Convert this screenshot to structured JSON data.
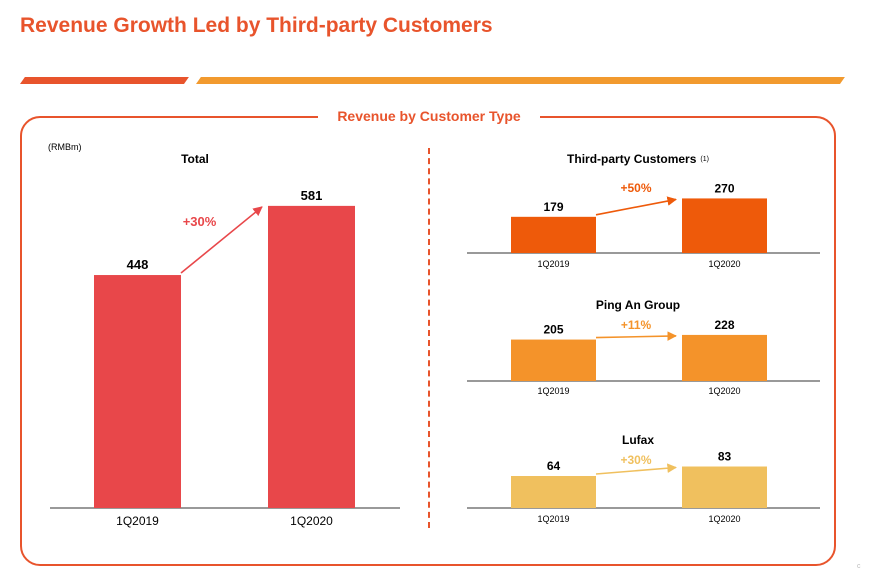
{
  "page": {
    "title": "Revenue Growth Led by Third-party Customers",
    "panel_title": "Revenue by Customer Type",
    "unit": "(RMBm)",
    "corner_mark": "c"
  },
  "colors": {
    "title": "#e8542c",
    "bar_left": "#e8542c",
    "bar_right": "#f29a2e",
    "panel_border": "#e8542c"
  },
  "chart_data": [
    {
      "type": "bar",
      "title": "Total",
      "categories": [
        "1Q2019",
        "1Q2020"
      ],
      "values": [
        448,
        581
      ],
      "growth_label": "+30%",
      "ylim": [
        0,
        750
      ],
      "color": "#e8474a",
      "arrow_color": "#e8474a"
    },
    {
      "type": "bar",
      "title": "Third-party Customers",
      "title_note": "(1)",
      "categories": [
        "1Q2019",
        "1Q2020"
      ],
      "values": [
        179,
        270
      ],
      "growth_label": "+50%",
      "ylim": [
        0,
        470
      ],
      "color": "#ee5a0a",
      "arrow_color": "#ee5a0a"
    },
    {
      "type": "bar",
      "title": "Ping An Group",
      "categories": [
        "1Q2019",
        "1Q2020"
      ],
      "values": [
        205,
        228
      ],
      "growth_label": "+11%",
      "ylim": [
        0,
        470
      ],
      "color": "#f4932a",
      "arrow_color": "#f4932a"
    },
    {
      "type": "bar",
      "title": "Lufax",
      "categories": [
        "1Q2019",
        "1Q2020"
      ],
      "values": [
        64,
        83
      ],
      "growth_label": "+30%",
      "ylim": [
        0,
        190
      ],
      "color": "#f0c05e",
      "arrow_color": "#f0c05e"
    }
  ]
}
